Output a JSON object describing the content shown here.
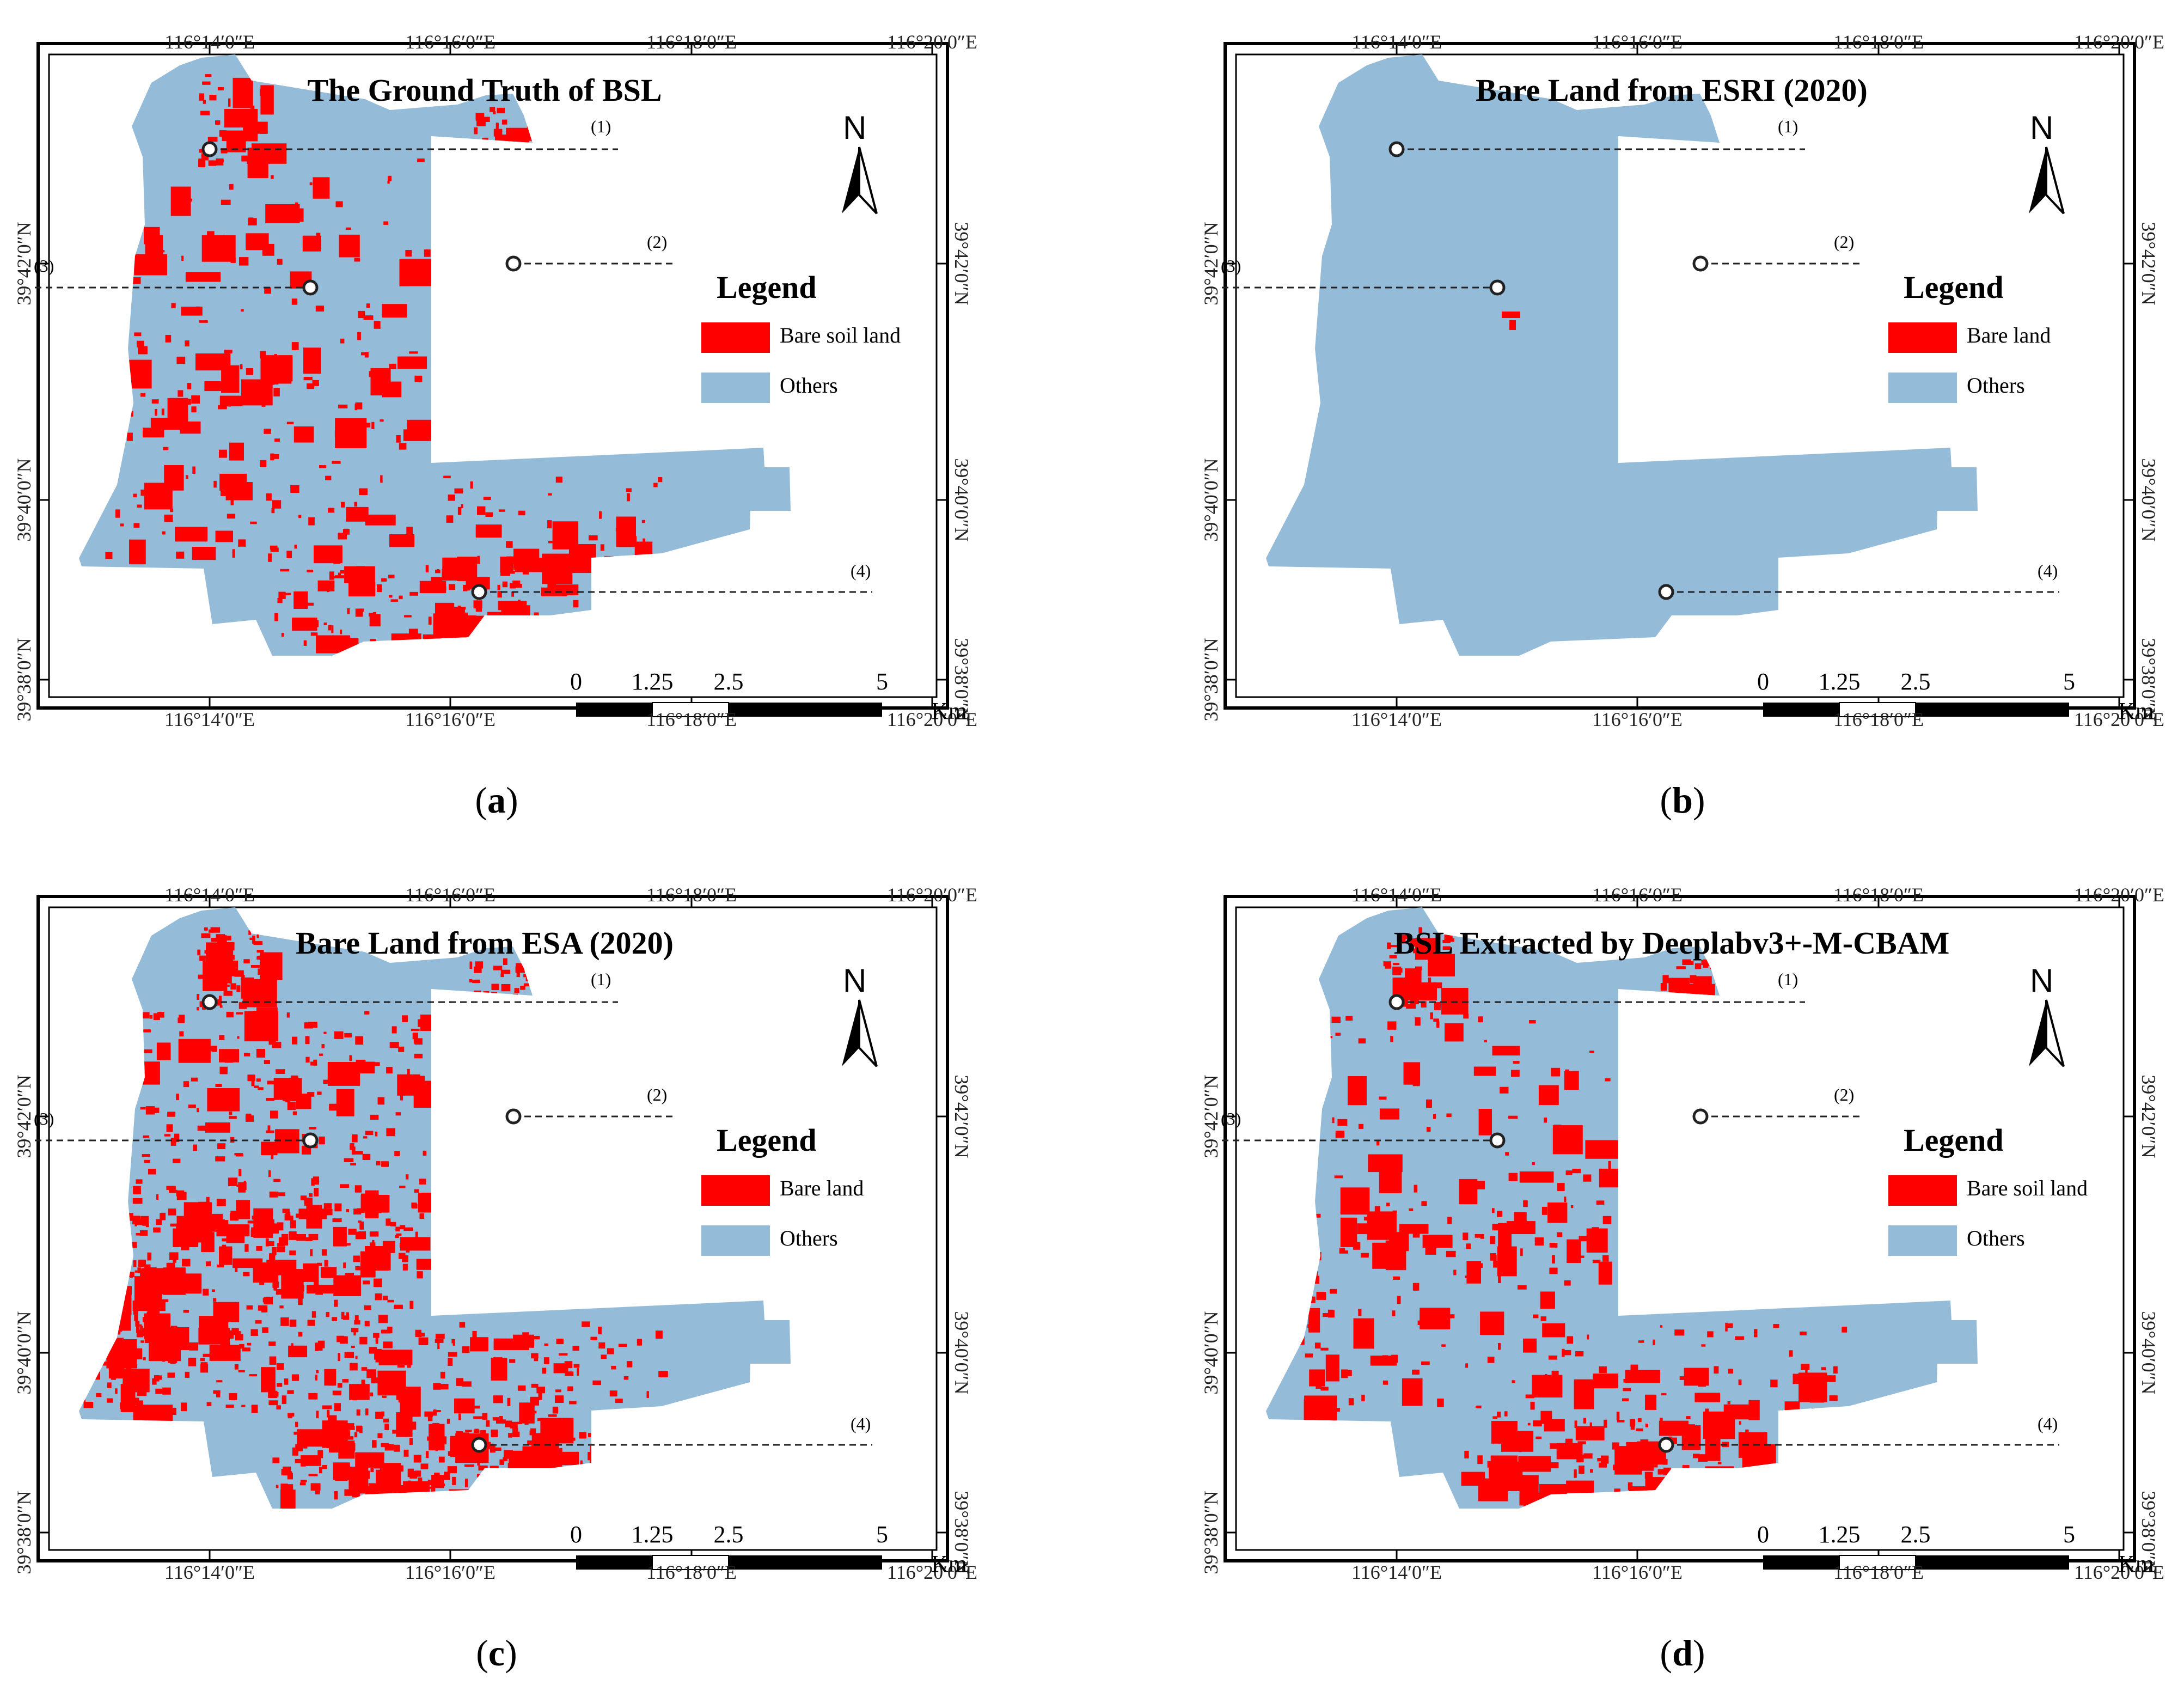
{
  "panels": [
    {
      "id": "a",
      "title": "The Ground Truth of BSL",
      "caption_letter": "a",
      "legend": {
        "title": "Legend",
        "bare_label": "Bare soil land",
        "others_label": "Others"
      },
      "bare_density": "medium"
    },
    {
      "id": "b",
      "title": "Bare Land from ESRI (2020)",
      "caption_letter": "b",
      "legend": {
        "title": "Legend",
        "bare_label": "Bare land",
        "others_label": "Others"
      },
      "bare_density": "sparse"
    },
    {
      "id": "c",
      "title": "Bare Land from ESA (2020)",
      "caption_letter": "c",
      "legend": {
        "title": "Legend",
        "bare_label": "Bare land",
        "others_label": "Others"
      },
      "bare_density": "dense"
    },
    {
      "id": "d",
      "title": "BSL Extracted by Deeplabv3+-M-CBAM",
      "caption_letter": "d",
      "legend": {
        "title": "Legend",
        "bare_label": "Bare soil land",
        "others_label": "Others"
      },
      "bare_density": "medium"
    }
  ],
  "axes": {
    "lon_ticks_top": [
      "116°14′0″E",
      "116°16′0″E",
      "116°18′0″E",
      "116°20′0″E"
    ],
    "lon_ticks_bottom": [
      "116°14′0″E",
      "116°16′0″E",
      "116°18′0″E",
      "116°20′0″E"
    ],
    "lat_ticks_left": [
      "39°42′0″N",
      "39°40′0″N",
      "39°38′0″N"
    ],
    "lat_ticks_right": [
      "39°42′0″N",
      "39°40′0″N",
      "39°38′0″N"
    ]
  },
  "north_arrow": {
    "label": "N"
  },
  "callouts": [
    "(1)",
    "(2)",
    "(3)",
    "(4)"
  ],
  "scale_bar": {
    "labels": [
      "0",
      "1.25",
      "2.5",
      "5"
    ],
    "unit": "Km"
  },
  "colors": {
    "bare": "#ff0000",
    "others": "#94bcd9",
    "frame": "#000000"
  }
}
